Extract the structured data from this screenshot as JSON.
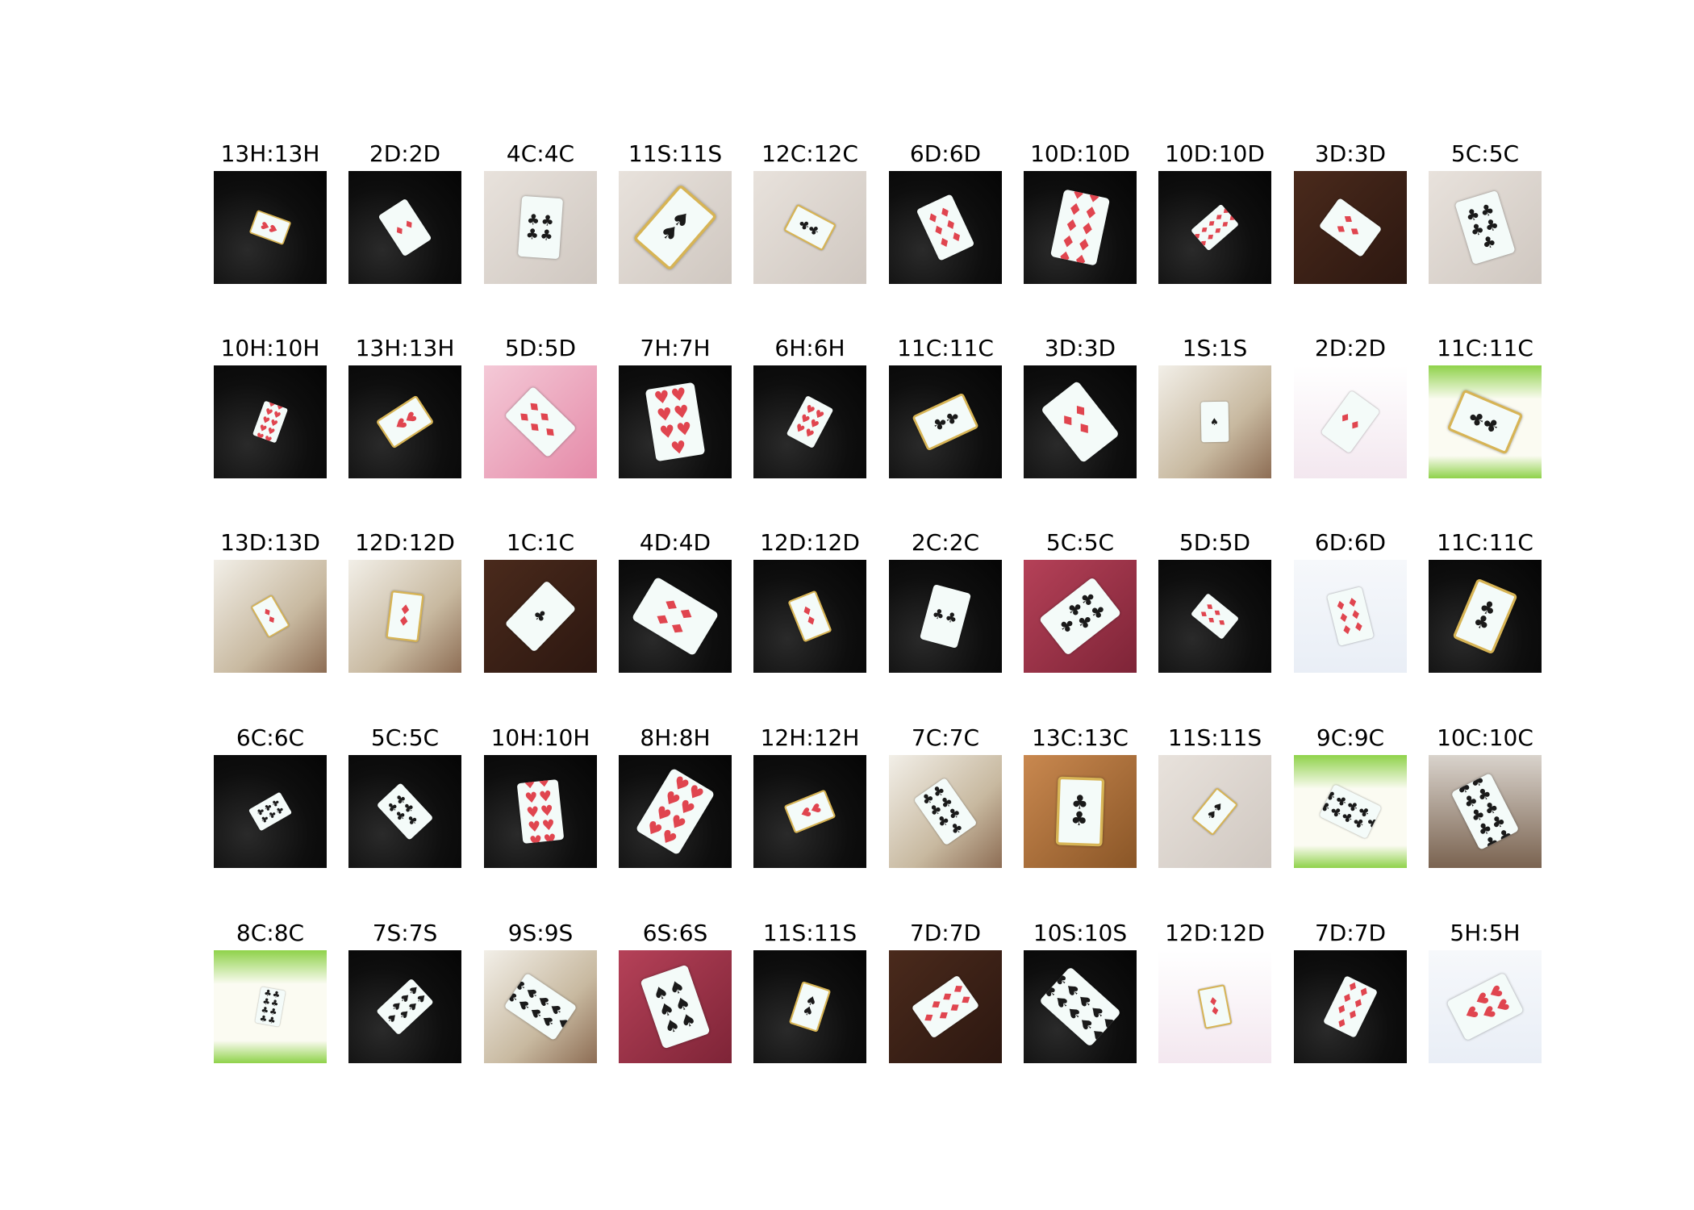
{
  "grid": {
    "rows": 5,
    "columns": 10,
    "items": [
      {
        "label": "13H:13H",
        "suit": "H",
        "rank": 13,
        "bg": "dark"
      },
      {
        "label": "2D:2D",
        "suit": "D",
        "rank": 2,
        "bg": "dark"
      },
      {
        "label": "4C:4C",
        "suit": "C",
        "rank": 4,
        "bg": "light"
      },
      {
        "label": "11S:11S",
        "suit": "S",
        "rank": 11,
        "bg": "light"
      },
      {
        "label": "12C:12C",
        "suit": "C",
        "rank": 12,
        "bg": "light"
      },
      {
        "label": "6D:6D",
        "suit": "D",
        "rank": 6,
        "bg": "dark"
      },
      {
        "label": "10D:10D",
        "suit": "D",
        "rank": 10,
        "bg": "dark"
      },
      {
        "label": "10D:10D",
        "suit": "D",
        "rank": 10,
        "bg": "dark"
      },
      {
        "label": "3D:3D",
        "suit": "D",
        "rank": 3,
        "bg": "brown"
      },
      {
        "label": "5C:5C",
        "suit": "C",
        "rank": 5,
        "bg": "light"
      },
      {
        "label": "10H:10H",
        "suit": "H",
        "rank": 10,
        "bg": "dark"
      },
      {
        "label": "13H:13H",
        "suit": "H",
        "rank": 13,
        "bg": "dark"
      },
      {
        "label": "5D:5D",
        "suit": "D",
        "rank": 5,
        "bg": "pink"
      },
      {
        "label": "7H:7H",
        "suit": "H",
        "rank": 7,
        "bg": "dark"
      },
      {
        "label": "6H:6H",
        "suit": "H",
        "rank": 6,
        "bg": "dark"
      },
      {
        "label": "11C:11C",
        "suit": "C",
        "rank": 11,
        "bg": "dark"
      },
      {
        "label": "3D:3D",
        "suit": "D",
        "rank": 3,
        "bg": "dark"
      },
      {
        "label": "1S:1S",
        "suit": "S",
        "rank": 1,
        "bg": "manga"
      },
      {
        "label": "2D:2D",
        "suit": "D",
        "rank": 2,
        "bg": "book-pink"
      },
      {
        "label": "11C:11C",
        "suit": "C",
        "rank": 11,
        "bg": "green"
      },
      {
        "label": "13D:13D",
        "suit": "D",
        "rank": 13,
        "bg": "manga"
      },
      {
        "label": "12D:12D",
        "suit": "D",
        "rank": 12,
        "bg": "manga"
      },
      {
        "label": "1C:1C",
        "suit": "C",
        "rank": 1,
        "bg": "brown"
      },
      {
        "label": "4D:4D",
        "suit": "D",
        "rank": 4,
        "bg": "dark"
      },
      {
        "label": "12D:12D",
        "suit": "D",
        "rank": 12,
        "bg": "dark"
      },
      {
        "label": "2C:2C",
        "suit": "C",
        "rank": 2,
        "bg": "dark"
      },
      {
        "label": "5C:5C",
        "suit": "C",
        "rank": 5,
        "bg": "red-book"
      },
      {
        "label": "5D:5D",
        "suit": "D",
        "rank": 5,
        "bg": "dark"
      },
      {
        "label": "6D:6D",
        "suit": "D",
        "rank": 6,
        "bg": "web"
      },
      {
        "label": "11C:11C",
        "suit": "C",
        "rank": 11,
        "bg": "dark"
      },
      {
        "label": "6C:6C",
        "suit": "C",
        "rank": 6,
        "bg": "dark"
      },
      {
        "label": "5C:5C",
        "suit": "C",
        "rank": 5,
        "bg": "dark"
      },
      {
        "label": "10H:10H",
        "suit": "H",
        "rank": 10,
        "bg": "dark"
      },
      {
        "label": "8H:8H",
        "suit": "H",
        "rank": 8,
        "bg": "dark"
      },
      {
        "label": "12H:12H",
        "suit": "H",
        "rank": 12,
        "bg": "dark"
      },
      {
        "label": "7C:7C",
        "suit": "C",
        "rank": 7,
        "bg": "manga"
      },
      {
        "label": "13C:13C",
        "suit": "C",
        "rank": 13,
        "bg": "wood"
      },
      {
        "label": "11S:11S",
        "suit": "S",
        "rank": 11,
        "bg": "light"
      },
      {
        "label": "9C:9C",
        "suit": "C",
        "rank": 9,
        "bg": "green"
      },
      {
        "label": "10C:10C",
        "suit": "C",
        "rank": 10,
        "bg": "office"
      },
      {
        "label": "8C:8C",
        "suit": "C",
        "rank": 8,
        "bg": "green"
      },
      {
        "label": "7S:7S",
        "suit": "S",
        "rank": 7,
        "bg": "dark"
      },
      {
        "label": "9S:9S",
        "suit": "S",
        "rank": 9,
        "bg": "manga"
      },
      {
        "label": "6S:6S",
        "suit": "S",
        "rank": 6,
        "bg": "red-book"
      },
      {
        "label": "11S:11S",
        "suit": "S",
        "rank": 11,
        "bg": "dark"
      },
      {
        "label": "7D:7D",
        "suit": "D",
        "rank": 7,
        "bg": "brown"
      },
      {
        "label": "10S:10S",
        "suit": "S",
        "rank": 10,
        "bg": "dark"
      },
      {
        "label": "12D:12D",
        "suit": "D",
        "rank": 12,
        "bg": "book-pink"
      },
      {
        "label": "7D:7D",
        "suit": "D",
        "rank": 7,
        "bg": "dark"
      },
      {
        "label": "5H:5H",
        "suit": "H",
        "rank": 5,
        "bg": "web"
      }
    ]
  },
  "colors": {
    "red_suit": "#e0454f",
    "black_suit": "#1a1a1a"
  }
}
